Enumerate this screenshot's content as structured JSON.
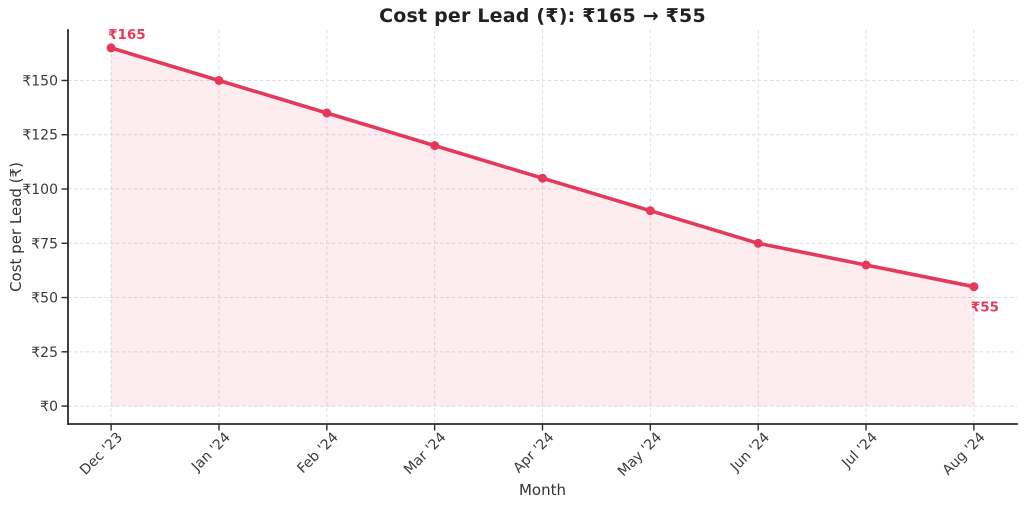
{
  "chart_data": {
    "type": "area",
    "title": "Cost per Lead (₹): ₹165 → ₹55",
    "xlabel": "Month",
    "ylabel": "Cost per Lead (₹)",
    "categories": [
      "Dec '23",
      "Jan '24",
      "Feb '24",
      "Mar '24",
      "Apr '24",
      "May '24",
      "Jun '24",
      "Jul '24",
      "Aug '24"
    ],
    "values": [
      165,
      150,
      135,
      120,
      105,
      90,
      75,
      65,
      55
    ],
    "yticks": [
      0,
      25,
      50,
      75,
      100,
      125,
      150
    ],
    "ytick_labels": [
      "₹0",
      "₹25",
      "₹50",
      "₹75",
      "₹100",
      "₹125",
      "₹150"
    ],
    "ylim": [
      -8.25,
      173.25
    ],
    "grid": true,
    "legend": false,
    "annotations": [
      {
        "text": "₹165",
        "point_index": 0,
        "position": "above-left"
      },
      {
        "text": "₹55",
        "point_index": 8,
        "position": "below-right"
      }
    ],
    "colors": {
      "line": "#e5395c",
      "fill": "#e5395c",
      "fill_opacity": 0.09,
      "grid": "#dedede",
      "axis": "#2b2b2b",
      "tick_label": "#3a3a3a",
      "title": "#212121",
      "background": "#ffffff"
    }
  }
}
